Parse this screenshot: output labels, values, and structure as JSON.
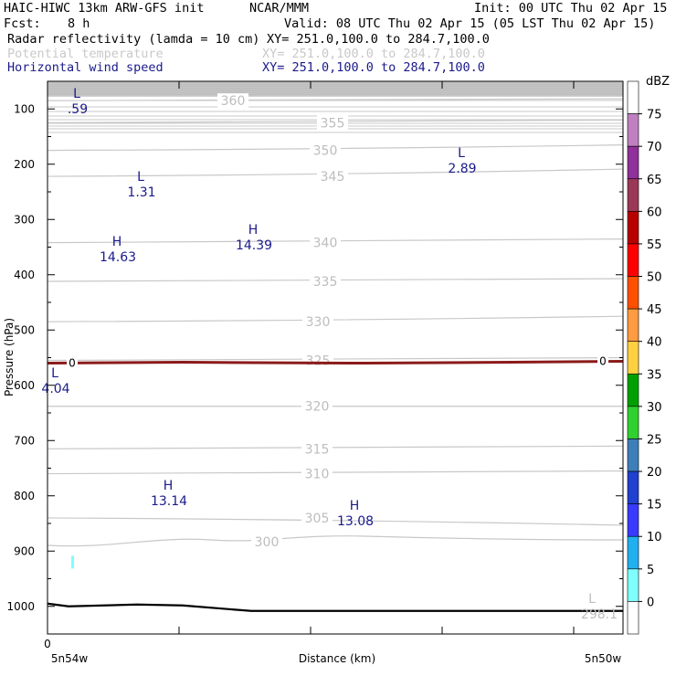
{
  "header": {
    "model": "HAIC-HIWC 13km ARW-GFS init",
    "org": "NCAR/MMM",
    "init": "Init: 00 UTC Thu 02 Apr 15",
    "fcst_label": "Fcst:",
    "fcst_value": "8 h",
    "valid": "Valid: 08 UTC Thu 02 Apr 15 (05 LST Thu 02 Apr 15)",
    "fields": [
      {
        "name": "Radar reflectivity (lamda = 10 cm)",
        "xy": "XY= 251.0,100.0 to 284.7,100.0",
        "color": "#000000"
      },
      {
        "name": "Potential temperature",
        "xy": "XY= 251.0,100.0 to 284.7,100.0",
        "color": "#c9c9c9"
      },
      {
        "name": "Horizontal wind speed",
        "xy": "XY= 251.0,100.0 to 284.7,100.0",
        "color": "#1a1a8c"
      }
    ]
  },
  "chart_data": {
    "type": "cross-section",
    "ylabel": "Pressure (hPa)",
    "xlabel": "Distance (km)",
    "y_axis": {
      "ticks": [
        100,
        200,
        300,
        400,
        500,
        600,
        700,
        800,
        900,
        1000
      ],
      "range": [
        1050,
        50
      ]
    },
    "x_axis": {
      "tick_value_label": "0",
      "left_label": "5n54w",
      "right_label": "5n50w"
    },
    "theta_contours": [
      {
        "label": "360",
        "p": 85
      },
      {
        "label": "355",
        "p": 125
      },
      {
        "label": "350",
        "p": 175
      },
      {
        "label": "345",
        "p": 222
      },
      {
        "label": "340",
        "p": 342
      },
      {
        "label": "335",
        "p": 412
      },
      {
        "label": "330",
        "p": 485
      },
      {
        "label": "325",
        "p": 555
      },
      {
        "label": "320",
        "p": 638
      },
      {
        "label": "315",
        "p": 715
      },
      {
        "label": "310",
        "p": 760
      },
      {
        "label": "305",
        "p": 840
      },
      {
        "label": "300",
        "p": 883
      },
      {
        "label": "298.1",
        "p": 1011
      }
    ],
    "wind_extrema": [
      {
        "type": "L",
        "value": ".59"
      },
      {
        "type": "L",
        "value": "2.89"
      },
      {
        "type": "L",
        "value": "1.31"
      },
      {
        "type": "H",
        "value": "14.63"
      },
      {
        "type": "H",
        "value": "14.39"
      },
      {
        "type": "L",
        "value": "4.04"
      },
      {
        "type": "H",
        "value": "13.14"
      },
      {
        "type": "H",
        "value": "13.08"
      }
    ],
    "theta_extrema": [
      {
        "type": "L",
        "value": "298.1"
      }
    ],
    "freezing_level": {
      "label": "0",
      "p": 560,
      "color": "#8b1a1a"
    },
    "terrain_p": 1005,
    "reflectivity_patch": {
      "dbz": 5,
      "color": "#7fffff",
      "p": 925
    },
    "colorbar": {
      "unit": "dBZ",
      "levels": [
        {
          "label": "75",
          "color": "#ffffff"
        },
        {
          "label": "70",
          "color": "#c080c0"
        },
        {
          "label": "65",
          "color": "#90309a"
        },
        {
          "label": "60",
          "color": "#9b3858"
        },
        {
          "label": "55",
          "color": "#b80000"
        },
        {
          "label": "50",
          "color": "#ff0000"
        },
        {
          "label": "45",
          "color": "#ff5000"
        },
        {
          "label": "40",
          "color": "#ff9b40"
        },
        {
          "label": "35",
          "color": "#ffd040"
        },
        {
          "label": "30",
          "color": "#00a000"
        },
        {
          "label": "25",
          "color": "#30d030"
        },
        {
          "label": "20",
          "color": "#3d7fb8"
        },
        {
          "label": "15",
          "color": "#2040d0"
        },
        {
          "label": "10",
          "color": "#3a3aff"
        },
        {
          "label": "5",
          "color": "#20b0f0"
        },
        {
          "label": "0",
          "color": "#80ffff"
        }
      ],
      "bottom_color": "#ffffff"
    }
  }
}
